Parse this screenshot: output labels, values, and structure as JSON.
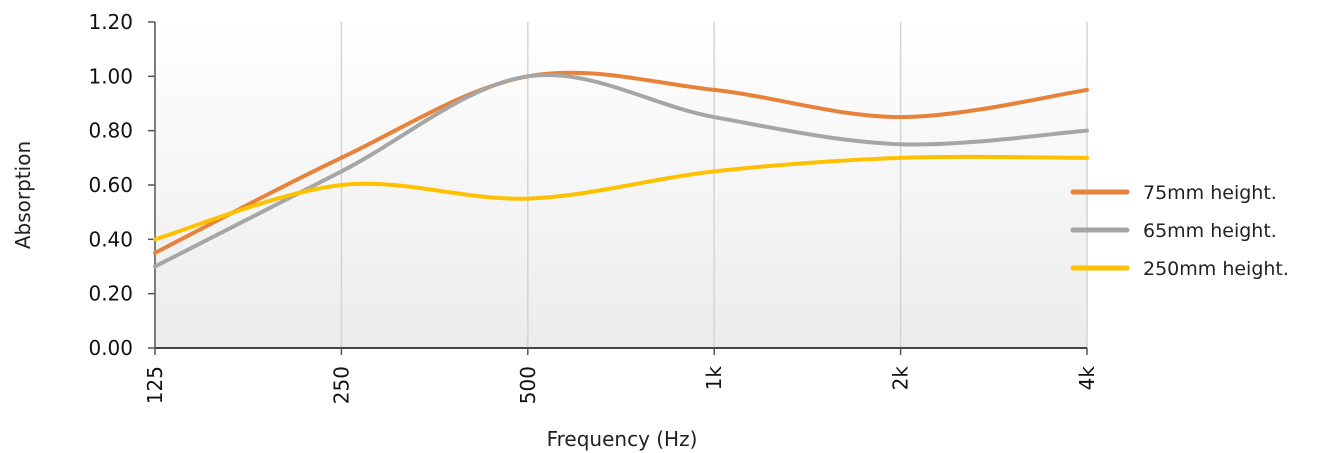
{
  "chart_data": {
    "type": "line",
    "title": "",
    "xlabel": "Frequency (Hz)",
    "ylabel": "Absorption",
    "categories": [
      "125",
      "250",
      "500",
      "1k",
      "2k",
      "4k"
    ],
    "ylim": [
      0,
      1.2
    ],
    "yticks": [
      "0.00",
      "0.20",
      "0.40",
      "0.60",
      "0.80",
      "1.00",
      "1.20"
    ],
    "smooth": true,
    "grid": "vertical",
    "background": "light gray gradient",
    "legend_position": "right",
    "series": [
      {
        "name": "75mm height.",
        "color": "#E8813A",
        "values": [
          0.35,
          0.7,
          1.0,
          0.95,
          0.85,
          0.95
        ]
      },
      {
        "name": "65mm height.",
        "color": "#A6A6A6",
        "values": [
          0.3,
          0.65,
          1.0,
          0.85,
          0.75,
          0.8
        ]
      },
      {
        "name": "250mm height.",
        "color": "#FFC000",
        "values": [
          0.4,
          0.6,
          0.55,
          0.65,
          0.7,
          0.7
        ]
      }
    ]
  }
}
